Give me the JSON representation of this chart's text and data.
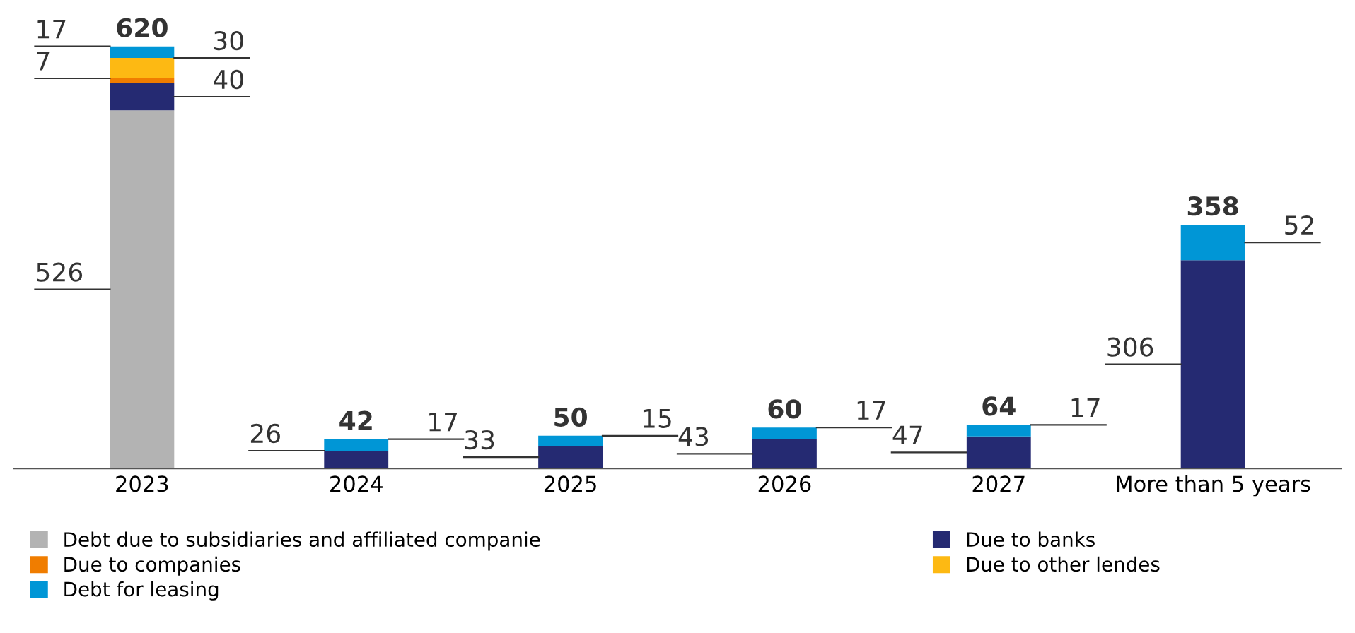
{
  "chart_data": {
    "type": "bar",
    "stacked": true,
    "data_labels": true,
    "legend": "bottom",
    "grid": false,
    "categories": [
      "2023",
      "2024",
      "2025",
      "2026",
      "2027",
      "More than 5 years"
    ],
    "series": [
      {
        "name": "Debt due to subsidiaries and affiliated companie",
        "color": "#b3b3b3",
        "values": [
          526,
          null,
          null,
          null,
          null,
          null
        ]
      },
      {
        "name": "Due to banks",
        "color": "#252a72",
        "values": [
          40,
          26,
          33,
          43,
          47,
          306
        ]
      },
      {
        "name": "Due to companies",
        "color": "#f07d00",
        "values": [
          7,
          null,
          null,
          null,
          null,
          null
        ]
      },
      {
        "name": "Due to other lendes",
        "color": "#fdb913",
        "values": [
          30,
          null,
          null,
          null,
          null,
          null
        ]
      },
      {
        "name": "Debt for leasing",
        "color": "#0096d6",
        "values": [
          17,
          17,
          15,
          17,
          17,
          52
        ]
      }
    ],
    "totals": [
      "620",
      "42",
      "50",
      "60",
      "64",
      "358"
    ]
  }
}
